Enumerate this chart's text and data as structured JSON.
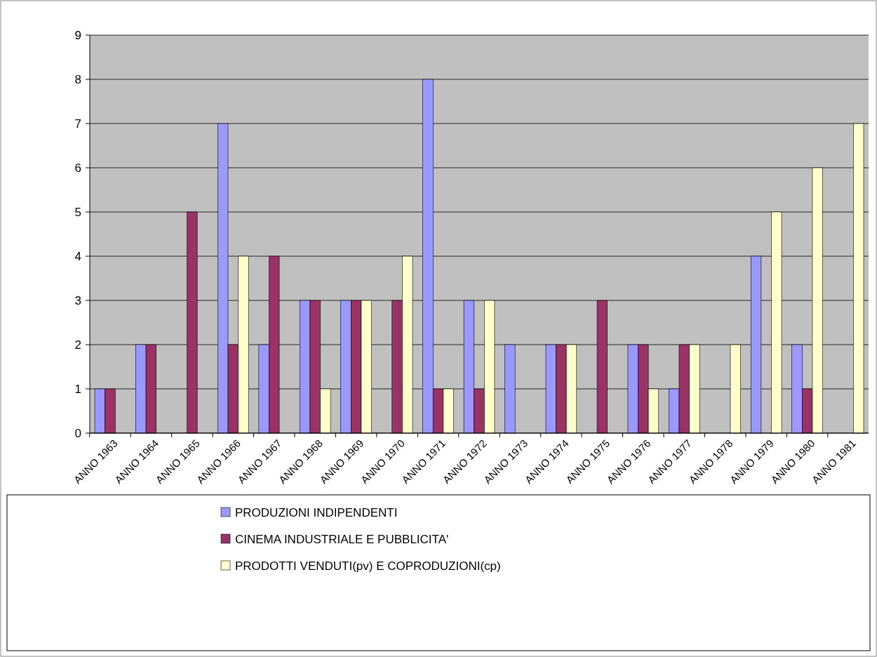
{
  "chart_data": {
    "type": "bar",
    "categories": [
      "ANNO 1963",
      "ANNO 1964",
      "ANNO 1965",
      "ANNO 1966",
      "ANNO 1967",
      "ANNO 1968",
      "ANNO 1969",
      "ANNO 1970",
      "ANNO 1971",
      "ANNO 1972",
      "ANNO 1973",
      "ANNO 1974",
      "ANNO 1975",
      "ANNO 1976",
      "ANNO 1977",
      "ANNO 1978",
      "ANNO 1979",
      "ANNO 1980",
      "ANNO 1981"
    ],
    "series": [
      {
        "name": "PRODUZIONI INDIPENDENTI",
        "color": "#9999ff",
        "values": [
          1,
          2,
          null,
          7,
          2,
          3,
          3,
          null,
          8,
          3,
          2,
          2,
          null,
          2,
          1,
          null,
          4,
          2,
          null
        ]
      },
      {
        "name": "CINEMA INDUSTRIALE E PUBBLICITA'",
        "color": "#993366",
        "values": [
          1,
          2,
          5,
          2,
          4,
          3,
          3,
          3,
          1,
          1,
          null,
          2,
          3,
          2,
          2,
          null,
          null,
          1,
          null
        ]
      },
      {
        "name": "PRODOTTI VENDUTI(pv) E COPRODUZIONI(cp)",
        "color": "#ffffcc",
        "values": [
          null,
          null,
          null,
          4,
          null,
          1,
          3,
          4,
          1,
          3,
          null,
          2,
          null,
          1,
          2,
          2,
          5,
          6,
          7
        ]
      }
    ],
    "ylim": [
      0,
      9
    ],
    "yticks": [
      0,
      1,
      2,
      3,
      4,
      5,
      6,
      7,
      8,
      9
    ],
    "grid": "y",
    "legend": "bottom"
  }
}
